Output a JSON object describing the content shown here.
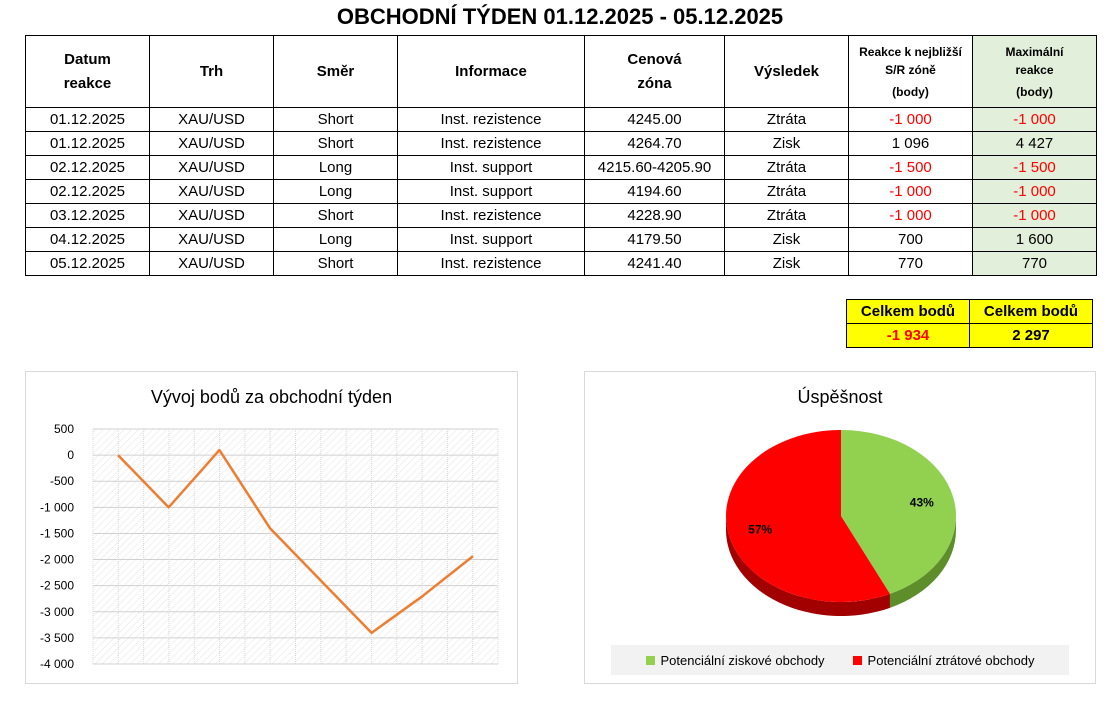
{
  "title": "OBCHODNÍ TÝDEN 01.12.2025 - 05.12.2025",
  "table": {
    "headers": {
      "date": [
        "Datum",
        "reakce"
      ],
      "market": "Trh",
      "direction": "Směr",
      "info": "Informace",
      "zone": [
        "Cenová",
        "zóna"
      ],
      "result": "Výsledek",
      "reaction": [
        "Reakce k nejbližší",
        "S/R zóně",
        "(body)"
      ],
      "max": [
        "Maximální",
        "reakce",
        "(body)"
      ]
    },
    "rows": [
      [
        "01.12.2025",
        "XAU/USD",
        "Short",
        "Inst. rezistence",
        "4245.00",
        "Ztráta",
        "-1 000",
        "-1 000"
      ],
      [
        "01.12.2025",
        "XAU/USD",
        "Short",
        "Inst. rezistence",
        "4264.70",
        "Zisk",
        "1 096",
        "4 427"
      ],
      [
        "02.12.2025",
        "XAU/USD",
        "Long",
        "Inst. support",
        "4215.60-4205.90",
        "Ztráta",
        "-1 500",
        "-1 500"
      ],
      [
        "02.12.2025",
        "XAU/USD",
        "Long",
        "Inst. support",
        "4194.60",
        "Ztráta",
        "-1 000",
        "-1 000"
      ],
      [
        "03.12.2025",
        "XAU/USD",
        "Short",
        "Inst. rezistence",
        "4228.90",
        "Ztráta",
        "-1 000",
        "-1 000"
      ],
      [
        "04.12.2025",
        "XAU/USD",
        "Long",
        "Inst. support",
        "4179.50",
        "Zisk",
        "700",
        "1 600"
      ],
      [
        "05.12.2025",
        "XAU/USD",
        "Short",
        "Inst. rezistence",
        "4241.40",
        "Zisk",
        "770",
        "770"
      ]
    ]
  },
  "totals": {
    "left_label": "Celkem bodů",
    "left_value": "-1 934",
    "right_label": "Celkem bodů",
    "right_value": "2 297"
  },
  "colors": {
    "negative": "#ff0000",
    "line": "#ed7d31",
    "pie_green": "#92d050",
    "pie_red": "#ff0000",
    "max_column": "#e2efda",
    "totals_bg": "#ffff00"
  },
  "chart_data": [
    {
      "type": "line",
      "title": "Vývoj bodů za obchodní týden",
      "x": [
        0,
        1,
        2,
        3,
        4,
        5,
        6,
        7
      ],
      "series": [
        {
          "values": [
            0,
            -1000,
            96,
            -1404,
            -2404,
            -3404,
            -2704,
            -1934
          ]
        }
      ],
      "ylim": [
        -4000,
        500
      ],
      "yticks": [
        500,
        0,
        -500,
        -1000,
        -1500,
        -2000,
        -2500,
        -3000,
        -3500,
        -4000
      ],
      "ytick_labels": [
        "500",
        "0",
        "-500",
        "-1 000",
        "-1 500",
        "-2 000",
        "-2 500",
        "-3 000",
        "-3 500",
        "-4 000"
      ],
      "grid": true,
      "legend": "none"
    },
    {
      "type": "pie",
      "title": "Úspěšnost",
      "labels": [
        "Potenciální ziskové obchody",
        "Potenciální ztrátové obchody"
      ],
      "values": [
        43,
        57
      ],
      "value_labels": [
        "43%",
        "57%"
      ],
      "legend": "bottom"
    }
  ]
}
